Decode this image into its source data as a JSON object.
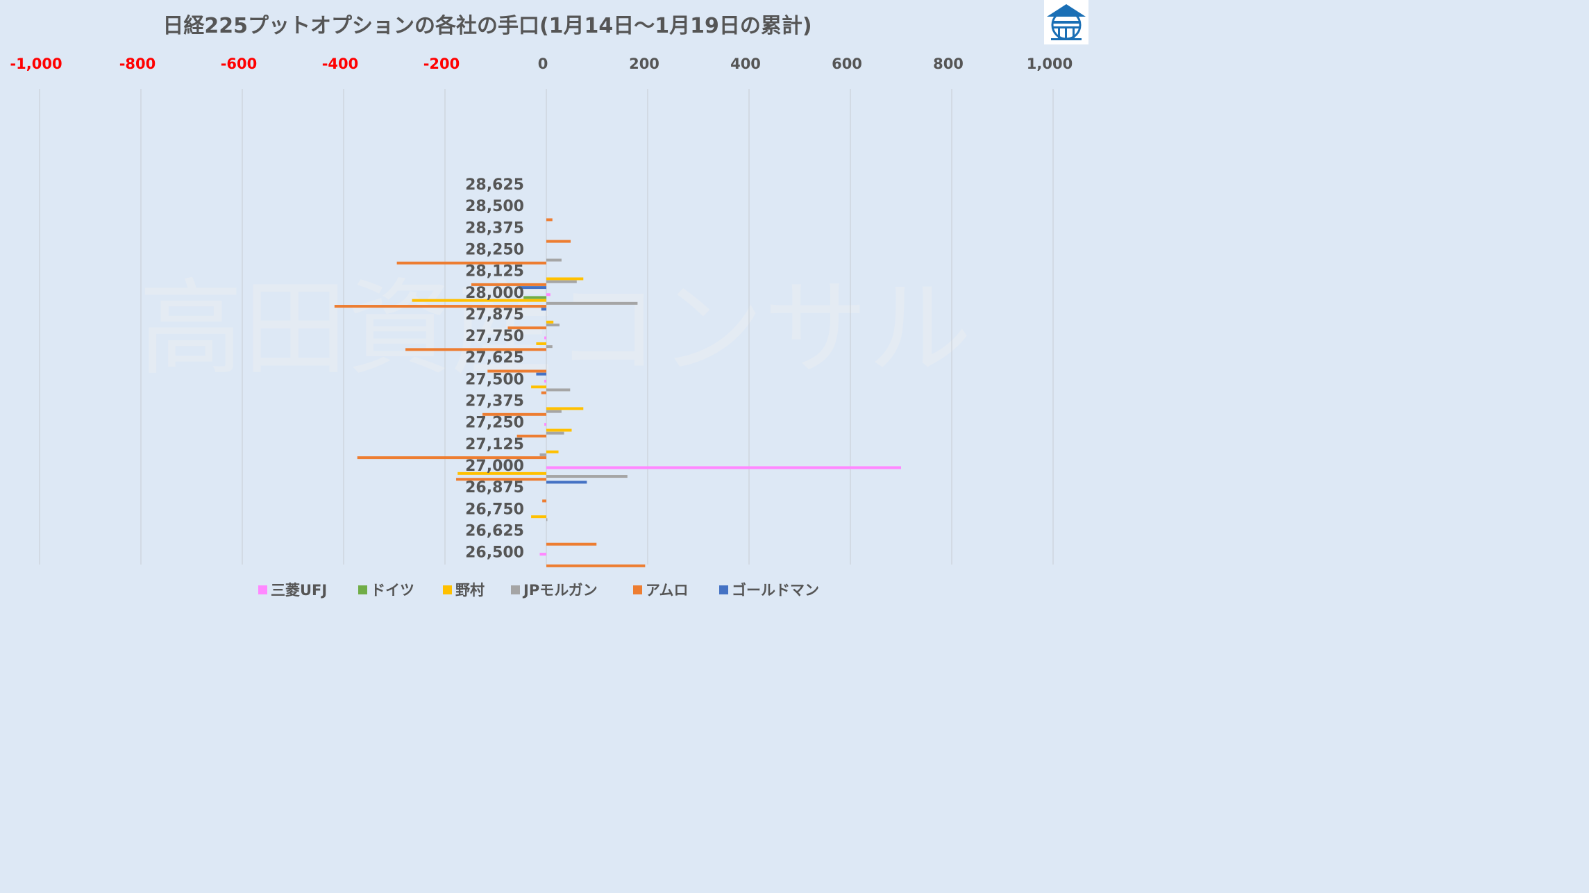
{
  "chart_data": {
    "type": "bar",
    "orientation": "horizontal",
    "title": "日経225プットオプションの各社の手口(1月14日～1月19日の累計)",
    "watermark": "高田資産コンサル",
    "xlim": [
      -1000,
      1000
    ],
    "xticks": [
      -1000,
      -800,
      -600,
      -400,
      -200,
      0,
      200,
      400,
      600,
      800,
      1000
    ],
    "xtick_labels": [
      "-1,000",
      "-800",
      "-600",
      "-400",
      "-200",
      "0",
      "200",
      "400",
      "600",
      "800",
      "1,000"
    ],
    "negative_tick_color": "#ff0000",
    "positive_tick_color": "#555555",
    "gridlines": true,
    "legend_position": "bottom",
    "categories": [
      "28,625",
      "28,500",
      "28,375",
      "28,250",
      "28,125",
      "28,000",
      "27,875",
      "27,750",
      "27,625",
      "27,500",
      "27,375",
      "27,250",
      "27,125",
      "27,000",
      "26,875",
      "26,750",
      "26,625",
      "26,500"
    ],
    "series": [
      {
        "name": "三菱UFJ",
        "color": "#ff88ff",
        "values": [
          0,
          0,
          0,
          0,
          0,
          8,
          0,
          -4,
          0,
          -4,
          0,
          -4,
          0,
          700,
          0,
          0,
          0,
          -13
        ]
      },
      {
        "name": "ドイツ",
        "color": "#70ad47",
        "values": [
          0,
          0,
          0,
          0,
          0,
          -45,
          0,
          0,
          0,
          0,
          0,
          0,
          0,
          0,
          0,
          0,
          0,
          0
        ]
      },
      {
        "name": "野村",
        "color": "#ffc000",
        "values": [
          0,
          0,
          0,
          0,
          73,
          -265,
          14,
          -20,
          0,
          -30,
          73,
          50,
          24,
          -175,
          0,
          -30,
          0,
          0
        ]
      },
      {
        "name": "JPモルガン",
        "color": "#a5a5a5",
        "values": [
          0,
          0,
          0,
          30,
          60,
          180,
          26,
          12,
          0,
          47,
          30,
          35,
          -13,
          160,
          0,
          2,
          0,
          0
        ]
      },
      {
        "name": "アムロ",
        "color": "#ed7d31",
        "values": [
          0,
          12,
          48,
          -295,
          -148,
          -418,
          -76,
          -278,
          -116,
          -10,
          -126,
          -58,
          -373,
          -178,
          -8,
          0,
          99,
          195
        ]
      },
      {
        "name": "ゴールドマン",
        "color": "#4472c4",
        "values": [
          0,
          0,
          0,
          0,
          -54,
          -10,
          0,
          0,
          -20,
          0,
          0,
          0,
          0,
          80,
          0,
          0,
          0,
          0
        ]
      }
    ]
  }
}
